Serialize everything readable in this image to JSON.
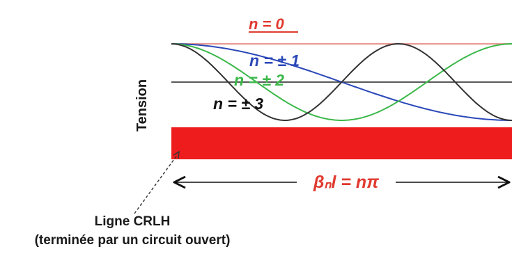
{
  "modes": [
    {
      "label": "n = 0",
      "color": "#e03a2f"
    },
    {
      "label": "n = ± 1",
      "color": "#2b48b8"
    },
    {
      "label": "n = ± 2",
      "color": "#3cb84a"
    },
    {
      "label": "n = ± 3",
      "color": "#111111"
    }
  ],
  "y_axis_label": "Tension",
  "dimension_label": "βₙl = nπ",
  "line_color": "#ee1c1c",
  "caption": {
    "line1": "Ligne CRLH",
    "line2": "(terminée par un circuit ouvert)"
  }
}
